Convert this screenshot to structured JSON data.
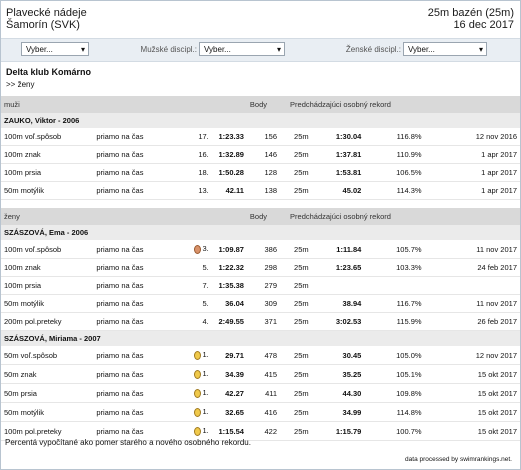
{
  "header": {
    "meet": "Plavecké nádeje",
    "city": "Šamorín (SVK)",
    "course": "25m bazén (25m)",
    "date": "16 dec 2017"
  },
  "filters": {
    "club_select": "Vyber...",
    "men_label": "Mužské discipl.:",
    "men_select": "Vyber...",
    "women_label": "Ženské discipl.:",
    "women_select": "Vyber..."
  },
  "club": {
    "name": "Delta klub Komárno",
    "link": ">> ženy"
  },
  "sections": [
    {
      "title": "muži",
      "points_label": "Body",
      "record_label": "Predchádzajúci osobný rekord",
      "athletes": [
        {
          "name": "ZAUKO, Viktor - 2006",
          "results": [
            {
              "event": "100m voľ.spôsob",
              "heat": "priamo na čas",
              "place": "17.",
              "time": "1:23.33",
              "points": 156,
              "pool": "25m",
              "prev_time": "1:30.04",
              "ratio": "116.8%",
              "prev_date": "12 nov 2016"
            },
            {
              "event": "100m znak",
              "heat": "priamo na čas",
              "place": "16.",
              "time": "1:32.89",
              "points": 146,
              "pool": "25m",
              "prev_time": "1:37.81",
              "ratio": "110.9%",
              "prev_date": "1 apr 2017"
            },
            {
              "event": "100m prsia",
              "heat": "priamo na čas",
              "place": "18.",
              "time": "1:50.28",
              "points": 128,
              "pool": "25m",
              "prev_time": "1:53.81",
              "ratio": "106.5%",
              "prev_date": "1 apr 2017"
            },
            {
              "event": "50m motýlik",
              "heat": "priamo na čas",
              "place": "13.",
              "time": "42.11",
              "points": 138,
              "pool": "25m",
              "prev_time": "45.02",
              "ratio": "114.3%",
              "prev_date": "1 apr 2017"
            }
          ]
        }
      ]
    },
    {
      "title": "ženy",
      "points_label": "Body",
      "record_label": "Predchádzajúci osobný rekord",
      "athletes": [
        {
          "name": "SZÁSZOVÁ, Ema - 2006",
          "results": [
            {
              "event": "100m voľ.spôsob",
              "heat": "priamo na čas",
              "medal": "bronze",
              "place": "3.",
              "time": "1:09.87",
              "points": 386,
              "pool": "25m",
              "prev_time": "1:11.84",
              "ratio": "105.7%",
              "prev_date": "11 nov 2017"
            },
            {
              "event": "100m znak",
              "heat": "priamo na čas",
              "place": "5.",
              "time": "1:22.32",
              "points": 298,
              "pool": "25m",
              "prev_time": "1:23.65",
              "ratio": "103.3%",
              "prev_date": "24 feb 2017"
            },
            {
              "event": "100m prsia",
              "heat": "priamo na čas",
              "place": "7.",
              "time": "1:35.38",
              "points": 279,
              "pool": "25m"
            },
            {
              "event": "50m motýlik",
              "heat": "priamo na čas",
              "place": "5.",
              "time": "36.04",
              "points": 309,
              "pool": "25m",
              "prev_time": "38.94",
              "ratio": "116.7%",
              "prev_date": "11 nov 2017"
            },
            {
              "event": "200m pol.preteky",
              "heat": "priamo na čas",
              "place": "4.",
              "time": "2:49.55",
              "points": 371,
              "pool": "25m",
              "prev_time": "3:02.53",
              "ratio": "115.9%",
              "prev_date": "26 feb 2017"
            }
          ]
        },
        {
          "name": "SZÁSZOVÁ, Miriama - 2007",
          "results": [
            {
              "event": "50m voľ.spôsob",
              "heat": "priamo na čas",
              "medal": "gold",
              "place": "1.",
              "time": "29.71",
              "points": 478,
              "pool": "25m",
              "prev_time": "30.45",
              "ratio": "105.0%",
              "prev_date": "12 nov 2017"
            },
            {
              "event": "50m znak",
              "heat": "priamo na čas",
              "medal": "gold",
              "place": "1.",
              "time": "34.39",
              "points": 415,
              "pool": "25m",
              "prev_time": "35.25",
              "ratio": "105.1%",
              "prev_date": "15 okt 2017"
            },
            {
              "event": "50m prsia",
              "heat": "priamo na čas",
              "medal": "gold",
              "place": "1.",
              "time": "42.27",
              "points": 411,
              "pool": "25m",
              "prev_time": "44.30",
              "ratio": "109.8%",
              "prev_date": "15 okt 2017"
            },
            {
              "event": "50m motýlik",
              "heat": "priamo na čas",
              "medal": "gold",
              "place": "1.",
              "time": "32.65",
              "points": 416,
              "pool": "25m",
              "prev_time": "34.99",
              "ratio": "114.8%",
              "prev_date": "15 okt 2017"
            },
            {
              "event": "100m pol.preteky",
              "heat": "priamo na čas",
              "medal": "gold",
              "place": "1.",
              "time": "1:15.54",
              "points": 422,
              "pool": "25m",
              "prev_time": "1:15.79",
              "ratio": "100.7%",
              "prev_date": "15 okt 2017"
            }
          ]
        }
      ]
    }
  ],
  "footer": {
    "note": "Percentá vypočítané ako pomer starého a nového osobného rekordu.",
    "credit": "data processed by swimrankings.net."
  }
}
